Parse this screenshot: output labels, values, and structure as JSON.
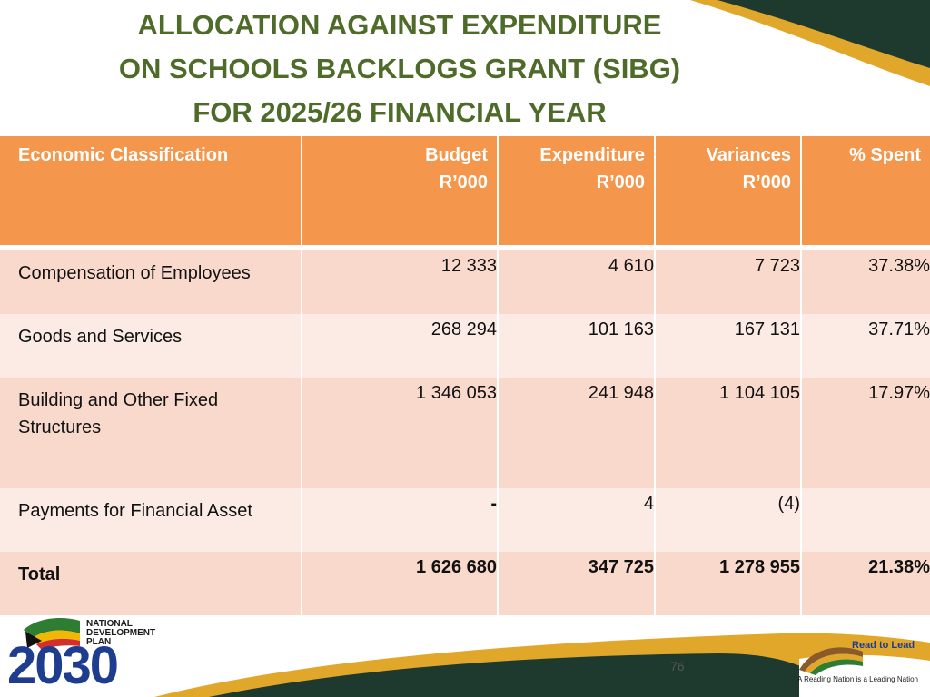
{
  "title": {
    "line1": "ALLOCATION AGAINST EXPENDITURE",
    "line2": "ON SCHOOLS BACKLOGS GRANT (SIBG)",
    "line3": "FOR 2025/26  FINANCIAL YEAR"
  },
  "table": {
    "headers": [
      {
        "line1": "Economic Classification",
        "line2": ""
      },
      {
        "line1": "Budget",
        "line2": "R’000"
      },
      {
        "line1": "Expenditure",
        "line2": "R’000"
      },
      {
        "line1": "Variances",
        "line2": "R’000"
      },
      {
        "line1": "% Spent",
        "line2": ""
      }
    ],
    "rows": [
      {
        "classification": "Compensation of Employees",
        "budget": "12 333",
        "expenditure": "4 610",
        "variance": "7 723",
        "spent": "37.38%"
      },
      {
        "classification": "Goods and Services",
        "budget": "268 294",
        "expenditure": "101 163",
        "variance": "167 131",
        "spent": "37.71%"
      },
      {
        "classification": "Building and Other Fixed Structures",
        "budget": "1 346 053",
        "expenditure": "241 948",
        "variance": "1 104 105",
        "spent": "17.97%"
      },
      {
        "classification": "Payments for Financial Asset",
        "budget": "-",
        "expenditure": "4",
        "variance": "(4)",
        "spent": ""
      },
      {
        "classification": "Total",
        "budget": "1 626 680",
        "expenditure": "347 725",
        "variance": "1 278 955",
        "spent": "21.38%"
      }
    ]
  },
  "footer": {
    "ndp_logo": {
      "line1": "NATIONAL",
      "line2": "DEVELOPMENT",
      "line3": "PLAN",
      "year": "2030"
    },
    "page_number": "76",
    "rtl_logo": {
      "title": "Read to Lead",
      "tagline": "A Reading Nation is a Leading Nation"
    }
  },
  "colors": {
    "title_green": "#4f6b2a",
    "header_orange": "#f4974c",
    "row_dark": "#f8d9cc",
    "row_light": "#fcebe4",
    "swoosh_green": "#1e3a2f",
    "swoosh_gold": "#e0a72a",
    "ndp_blue": "#1f3d8f"
  }
}
